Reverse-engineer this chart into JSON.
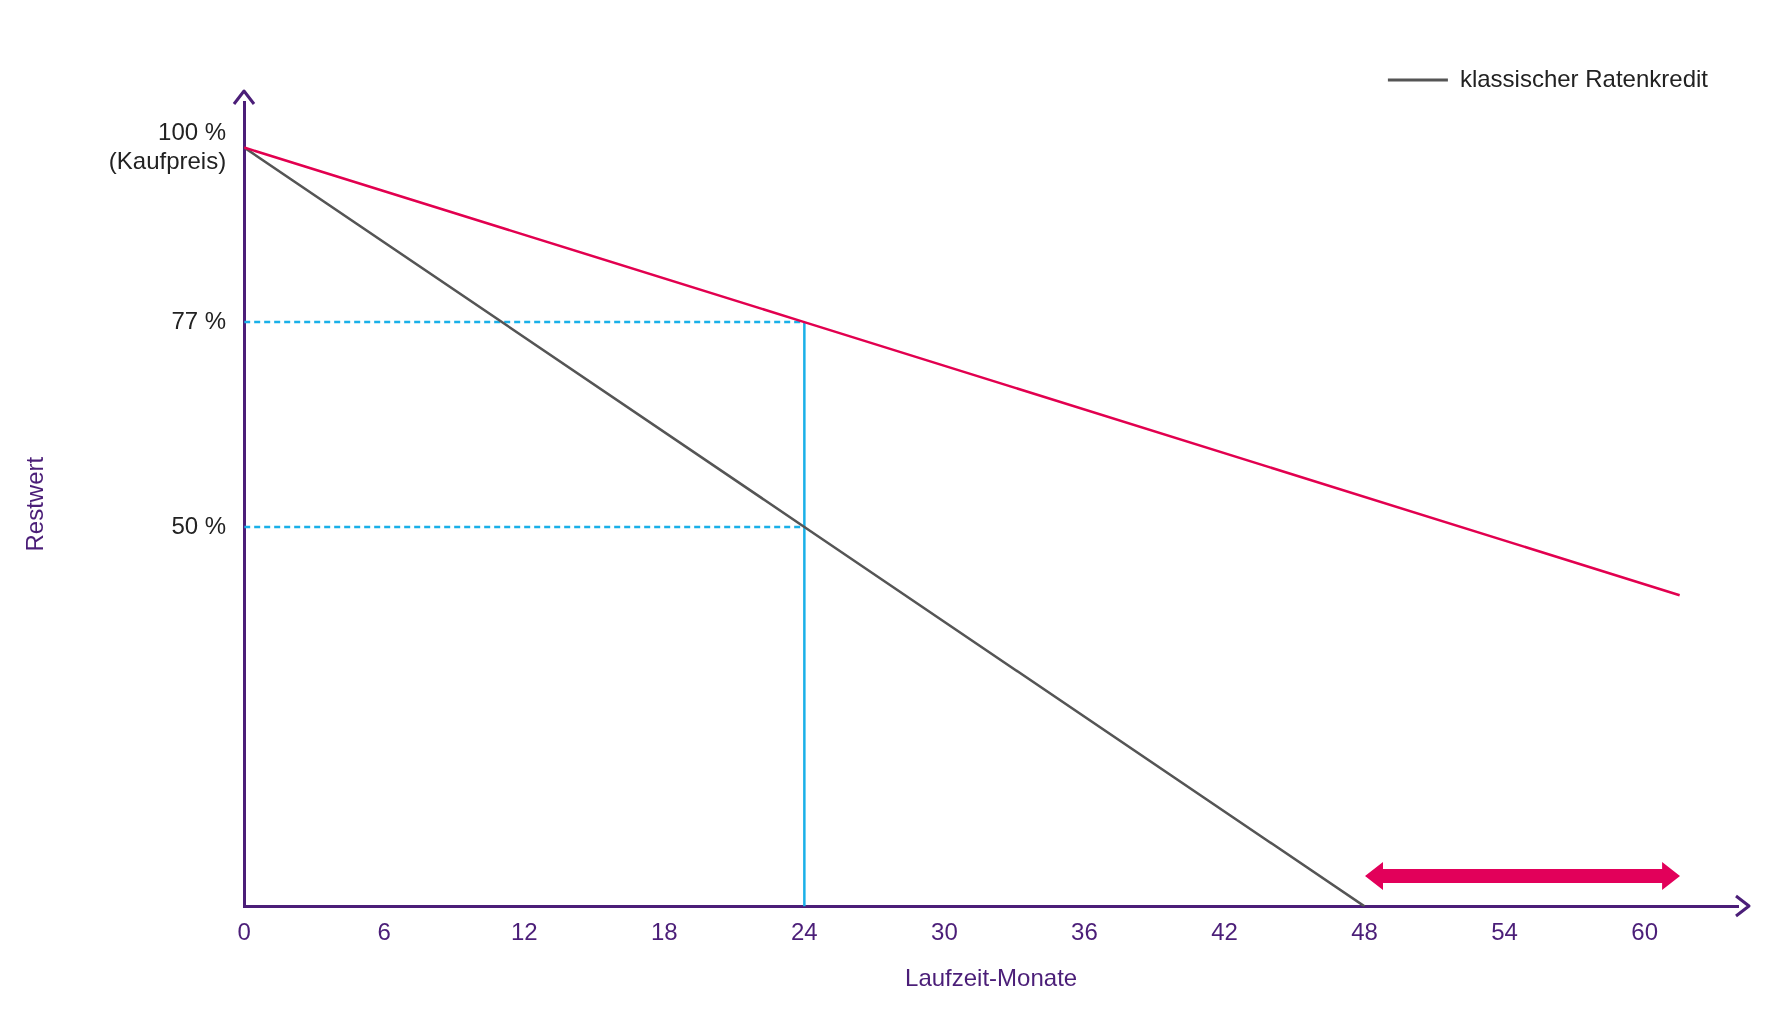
{
  "chart_data": {
    "type": "line",
    "xlabel": "Laufzeit-Monate",
    "ylabel": "Restwert",
    "xlim": [
      0,
      64
    ],
    "xticks": [
      0,
      6,
      12,
      18,
      24,
      30,
      36,
      42,
      48,
      54,
      60
    ],
    "ylim": [
      0,
      106
    ],
    "yticks": [
      {
        "value": 50,
        "label": "50 %"
      },
      {
        "value": 77,
        "label": "77 %"
      },
      {
        "value": 100,
        "label": "100 %\n(Kaufpreis)"
      }
    ],
    "series": [
      {
        "color": "#e2004f",
        "x": [
          0,
          24,
          61.5
        ],
        "values": [
          100,
          77,
          41
        ]
      },
      {
        "name": "klassischer Ratenkredit",
        "color": "#555555",
        "x": [
          0,
          24,
          48
        ],
        "values": [
          100,
          50,
          0
        ]
      },
      {
        "color": "#1ab0e8",
        "x": [
          0,
          24
        ],
        "values": [
          77,
          77
        ],
        "line_style": "dashed"
      },
      {
        "color": "#1ab0e8",
        "x": [
          0,
          24
        ],
        "values": [
          50,
          50
        ],
        "line_style": "dashed"
      },
      {
        "color": "#1ab0e8",
        "x": [
          24,
          24
        ],
        "values": [
          0,
          77
        ]
      }
    ],
    "grid": false,
    "legend": "top right",
    "marker": "none",
    "line_style": "solid"
  }
}
